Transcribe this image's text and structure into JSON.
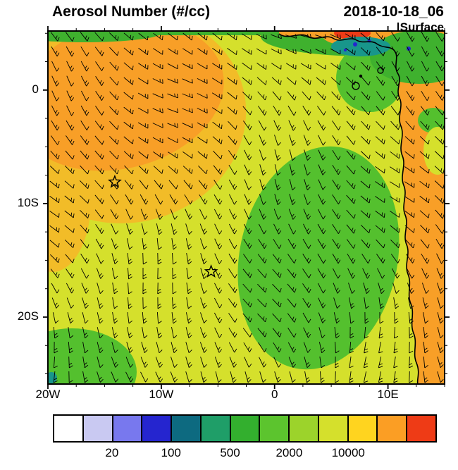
{
  "header": {
    "title": "Aerosol Number (#/cc)",
    "datetime": "2018-10-18_06",
    "level": "Surface"
  },
  "chart_data": {
    "type": "heatmap",
    "subtype": "filled-contour latitude/longitude map with wind barb overlay",
    "title": "Aerosol Number (#/cc)",
    "valid_time": "2018-10-18_06",
    "level": "Surface",
    "lon_range_deg": [
      -20,
      15
    ],
    "lat_range_deg": [
      -25.9,
      5.2
    ],
    "x_ticks": [
      {
        "lon": -20,
        "label": "20W"
      },
      {
        "lon": -10,
        "label": "10W"
      },
      {
        "lon": 0,
        "label": "0"
      },
      {
        "lon": 10,
        "label": "10E"
      }
    ],
    "y_ticks": [
      {
        "lat": 0,
        "label": "0"
      },
      {
        "lat": -10,
        "label": "10S"
      },
      {
        "lat": -20,
        "label": "20S"
      }
    ],
    "minor_tick_deg": 2.5,
    "colorbar": {
      "colors": [
        "#ffffff",
        "#c9c9f2",
        "#7878ee",
        "#2525cf",
        "#0d6a80",
        "#1f9e68",
        "#33af2e",
        "#5cc42e",
        "#9cd32b",
        "#d5e02c",
        "#ffd41f",
        "#fb9e24",
        "#ee3b16"
      ],
      "tick_labels": [
        {
          "boundary_index": 2,
          "label": "20"
        },
        {
          "boundary_index": 4,
          "label": "100"
        },
        {
          "boundary_index": 6,
          "label": "500"
        },
        {
          "boundary_index": 8,
          "label": "2000"
        },
        {
          "boundary_index": 10,
          "label": "10000"
        }
      ]
    },
    "map_colors": {
      "background": "#d5e02c",
      "yellow_orange": "#f2bc28",
      "orange": "#f89f27",
      "red": "#ee3b16",
      "green": "#54c02e",
      "dark_green": "#3fb12e",
      "light_green": "#8ccf2b",
      "teal": "#18968b",
      "dark_blue": "#2525cf",
      "coastline": "#000000",
      "barbs": "#000000"
    },
    "markers": [
      {
        "symbol": "star",
        "lon": -14.1,
        "lat": -8.1
      },
      {
        "symbol": "star",
        "lon": -5.6,
        "lat": -16.0
      }
    ],
    "features": [
      "orange high-aerosol plume over the northwest quadrant of the domain",
      "orange band along the African (Angola/Namibia) coast on the eastern edge",
      "large green low-aerosol lobe offshore in the south-central basin",
      "green/teal coastal strip along the Gulf of Guinea at the top edge",
      "small red aerosol maximum at the top edge near the coast",
      "wind barbs indicate south-easterly trade flow over the basin",
      "two open star storm markers in the central basin"
    ]
  }
}
